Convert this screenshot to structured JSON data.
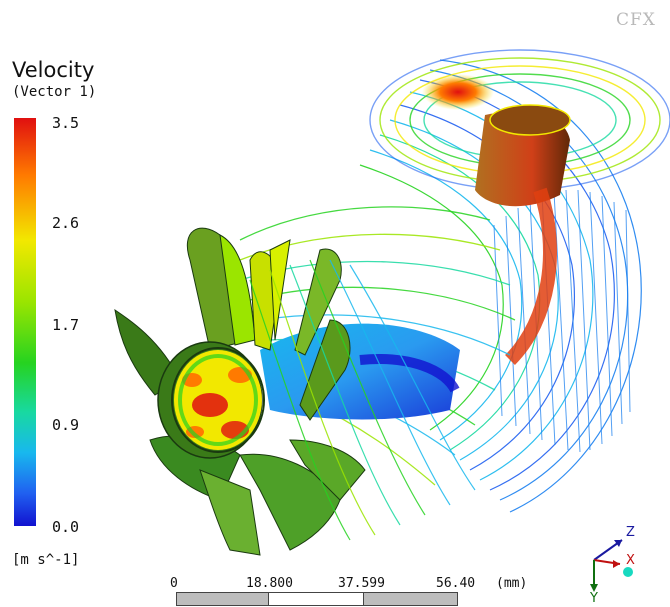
{
  "logo": {
    "text": "CFX"
  },
  "legend": {
    "title": "Velocity",
    "subtitle": "(Vector 1)",
    "ticks": [
      "3.5",
      "2.6",
      "1.7",
      "0.9",
      "0.0"
    ],
    "units": "[m s^-1]",
    "colors": {
      "max": "#e01010",
      "high": "#f2e800",
      "mid": "#26d320",
      "low": "#18b8ee",
      "min": "#1212d0"
    }
  },
  "scale": {
    "labels": [
      "0",
      "18.800",
      "37.599",
      "56.40"
    ],
    "unit": "(mm)"
  },
  "axes": {
    "z": "Z",
    "x": "X",
    "y": "Y"
  }
}
